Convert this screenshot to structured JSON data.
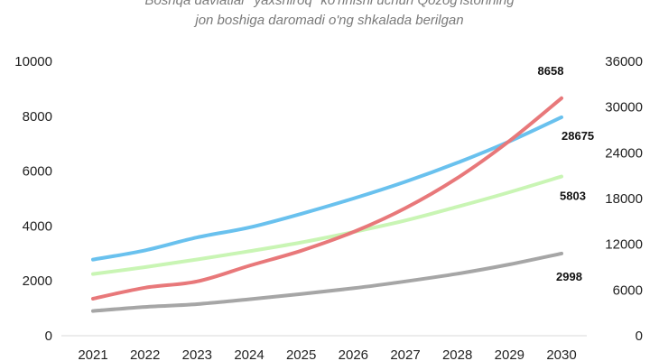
{
  "chart_data": {
    "type": "line",
    "title": "Boshqa davlatlar \"yaxshiroq\" ko'rinishi uchun Qozog'istonning jon boshiga daromadi o'ng shkalada berilgan",
    "title_lines": [
      "Boshqa davlatlar \"yaxshiroq\" ko'rinishi uchun Qozog'istonning",
      "jon boshiga daromadi o'ng shkalada berilgan"
    ],
    "x": [
      "2021",
      "2022",
      "2023",
      "2024",
      "2025",
      "2026",
      "2027",
      "2028",
      "2029",
      "2030"
    ],
    "y_left": {
      "range": [
        0,
        10000
      ],
      "ticks": [
        "0",
        "2000",
        "4000",
        "6000",
        "8000",
        "10000"
      ]
    },
    "y_right": {
      "range": [
        0,
        36000
      ],
      "ticks": [
        "0",
        "6000",
        "12000",
        "18000",
        "24000",
        "30000",
        "36000"
      ]
    },
    "grid": false,
    "series": [
      {
        "color": "#69c1ee",
        "axis": "right",
        "values": [
          10000,
          11200,
          12900,
          14200,
          16000,
          18000,
          20200,
          22700,
          25500,
          28675
        ],
        "end_label": "28675"
      },
      {
        "color": "#e8787a",
        "axis": "left",
        "values": [
          1350,
          1750,
          1980,
          2550,
          3100,
          3780,
          4650,
          5750,
          7100,
          8658
        ],
        "end_label": "8658"
      },
      {
        "color": "#c9f5b4",
        "axis": "left",
        "values": [
          2250,
          2500,
          2780,
          3080,
          3400,
          3780,
          4200,
          4700,
          5230,
          5803
        ],
        "end_label": "5803"
      },
      {
        "color": "#a6a6a6",
        "axis": "left",
        "values": [
          900,
          1050,
          1150,
          1330,
          1520,
          1730,
          1980,
          2260,
          2600,
          2998
        ],
        "end_label": "2998"
      }
    ]
  }
}
